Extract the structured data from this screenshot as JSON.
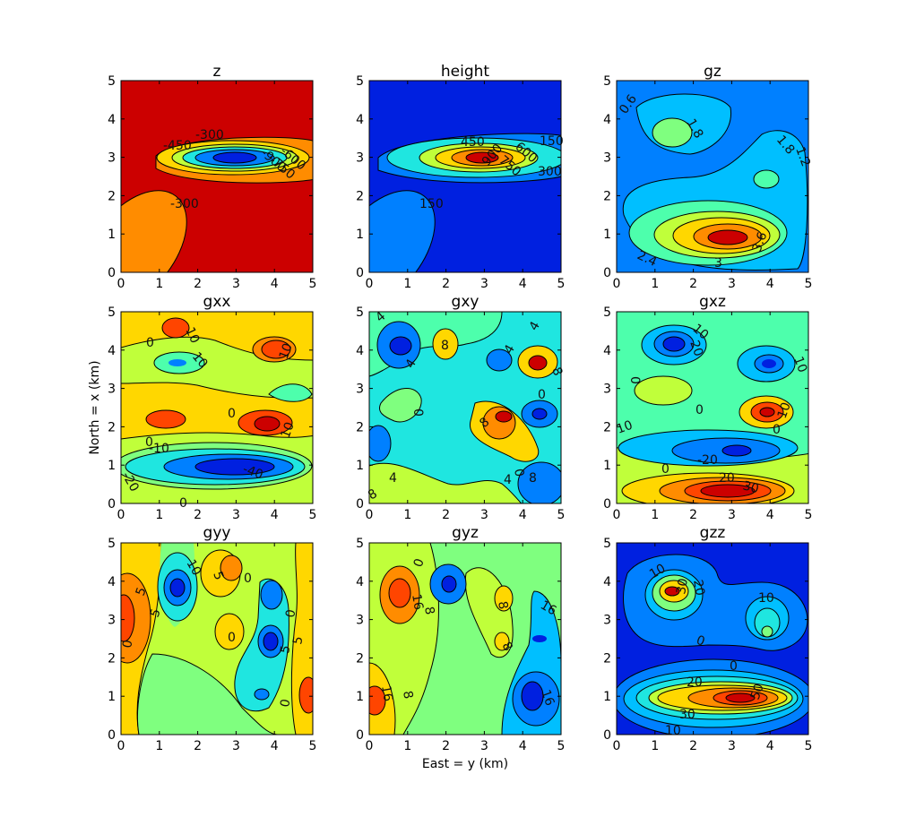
{
  "chart_data": {
    "type": "contour",
    "xlabel": "East = y (km)",
    "ylabel": "North = x (km)",
    "xlim": [
      0,
      5
    ],
    "ylim": [
      0,
      5
    ],
    "xticks": [
      "0",
      "1",
      "2",
      "3",
      "4",
      "5"
    ],
    "yticks": [
      "0",
      "1",
      "2",
      "3",
      "4",
      "5"
    ],
    "colors": {
      "darkred": "#7f0000",
      "red": "#cc0000",
      "orangered": "#ff4500",
      "orange": "#ff8c00",
      "yellow": "#ffd700",
      "yellowgreen": "#c0ff3a",
      "green": "#7fff7f",
      "aquagreen": "#4dffac",
      "cyan": "#1fe6e0",
      "lightblue": "#00bfff",
      "blue": "#0080ff",
      "darkblue": "#0020e0",
      "navy": "#0000b0"
    },
    "panels": [
      {
        "title": "z",
        "background": "#cc0000",
        "labels": [
          "-300",
          "-450",
          "-600",
          "-750",
          "-900",
          "-300"
        ]
      },
      {
        "title": "height",
        "background": "#0020e0",
        "labels": [
          "150",
          "450",
          "600",
          "750",
          "900",
          "300",
          "150"
        ]
      },
      {
        "title": "gz",
        "background": "#0080ff",
        "labels": [
          "0.6",
          "1.8",
          "1.8",
          "1.2",
          "2.4",
          "3",
          "3.6"
        ]
      },
      {
        "title": "gxx",
        "background": "#ffd700",
        "labels": [
          "10",
          "0",
          "10",
          "10",
          "0",
          "10",
          "0",
          "-10",
          "-40",
          "-20",
          "0"
        ]
      },
      {
        "title": "gxy",
        "background": "#1fe6e0",
        "labels": [
          "4",
          "8",
          "4",
          "4",
          "4",
          "8",
          "0",
          "8",
          "0",
          "0",
          "4",
          "4",
          "8",
          "8"
        ]
      },
      {
        "title": "gxz",
        "background": "#4dffac",
        "labels": [
          "10",
          "20",
          "0",
          "10",
          "0",
          "10",
          "0",
          "-20",
          "0",
          "10",
          "20",
          "30"
        ]
      },
      {
        "title": "gyy",
        "background": "#c0ff3a",
        "labels": [
          "10",
          "5",
          "0",
          "5",
          "5",
          "0",
          "0",
          "0",
          "5",
          "5",
          "0"
        ]
      },
      {
        "title": "gyz",
        "background": "#7fff7f",
        "labels": [
          "0",
          "16",
          "8",
          "8",
          "8",
          "16",
          "16",
          "16",
          "8"
        ]
      },
      {
        "title": "gzz",
        "background": "#0020e0",
        "labels": [
          "10",
          "30",
          "20",
          "10",
          "0",
          "0",
          "20",
          "30",
          "50",
          "10"
        ]
      }
    ]
  }
}
